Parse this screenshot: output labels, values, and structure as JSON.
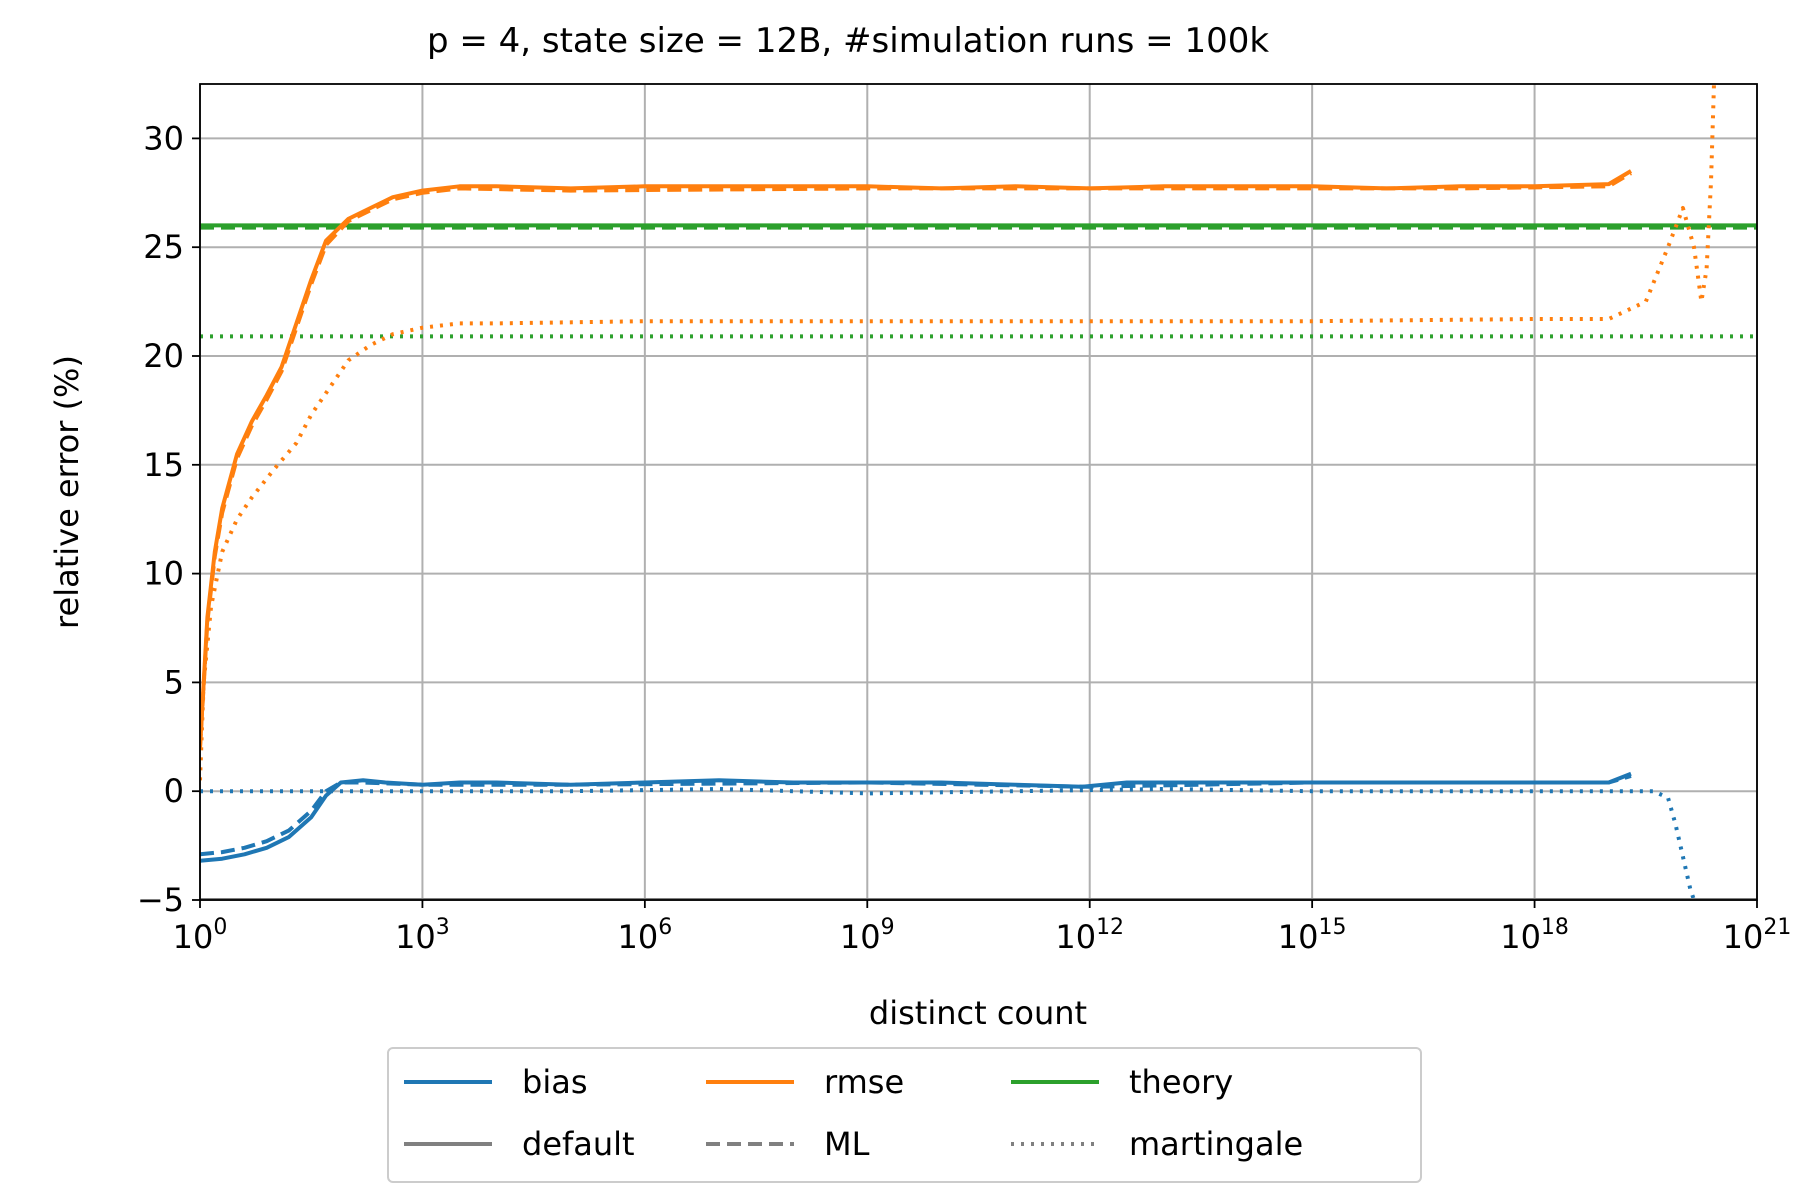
{
  "chart_data": {
    "type": "line",
    "title": "p = 4, state size = 12B, #simulation runs = 100k",
    "xlabel": "distinct count",
    "ylabel": "relative error (%)",
    "xscale": "log",
    "xlim_exp": [
      0,
      21
    ],
    "ylim": [
      -5,
      32.5
    ],
    "grid": true,
    "xticks": [
      {
        "base": "10",
        "exp": "0"
      },
      {
        "base": "10",
        "exp": "3"
      },
      {
        "base": "10",
        "exp": "6"
      },
      {
        "base": "10",
        "exp": "9"
      },
      {
        "base": "10",
        "exp": "12"
      },
      {
        "base": "10",
        "exp": "15"
      },
      {
        "base": "10",
        "exp": "18"
      },
      {
        "base": "10",
        "exp": "21"
      }
    ],
    "yticks": [
      "−5",
      "0",
      "5",
      "10",
      "15",
      "20",
      "25",
      "30"
    ],
    "colors": {
      "bias": "#1f77b4",
      "rmse": "#ff7f0e",
      "theory": "#2ca02c",
      "default": "#808080",
      "grid": "#b0b0b0"
    },
    "legend": {
      "placement": "below-center",
      "entries": [
        {
          "label": "bias",
          "color": "#1f77b4",
          "style": "solid"
        },
        {
          "label": "rmse",
          "color": "#ff7f0e",
          "style": "solid"
        },
        {
          "label": "theory",
          "color": "#2ca02c",
          "style": "solid"
        },
        {
          "label": "default",
          "color": "#808080",
          "style": "solid"
        },
        {
          "label": "ML",
          "color": "#808080",
          "style": "dashed"
        },
        {
          "label": "martingale",
          "color": "#808080",
          "style": "dotted"
        }
      ]
    },
    "series": [
      {
        "name": "theory default",
        "color": "#2ca02c",
        "style": "solid",
        "points": [
          [
            0,
            26.0
          ],
          [
            21,
            26.0
          ]
        ]
      },
      {
        "name": "theory ML",
        "color": "#2ca02c",
        "style": "dashed",
        "points": [
          [
            0,
            25.9
          ],
          [
            21,
            25.9
          ]
        ]
      },
      {
        "name": "theory martingale",
        "color": "#2ca02c",
        "style": "dotted",
        "points": [
          [
            0,
            20.9
          ],
          [
            21,
            20.9
          ]
        ]
      },
      {
        "name": "rmse default",
        "color": "#ff7f0e",
        "style": "solid",
        "points": [
          [
            0,
            2.0
          ],
          [
            0.1,
            8.0
          ],
          [
            0.2,
            11.0
          ],
          [
            0.3,
            13.0
          ],
          [
            0.5,
            15.5
          ],
          [
            0.7,
            17.0
          ],
          [
            0.9,
            18.2
          ],
          [
            1.1,
            19.5
          ],
          [
            1.3,
            21.5
          ],
          [
            1.5,
            23.5
          ],
          [
            1.7,
            25.3
          ],
          [
            2.0,
            26.3
          ],
          [
            2.3,
            26.8
          ],
          [
            2.6,
            27.3
          ],
          [
            3.0,
            27.6
          ],
          [
            3.5,
            27.8
          ],
          [
            4.0,
            27.8
          ],
          [
            5.0,
            27.7
          ],
          [
            6.0,
            27.8
          ],
          [
            7.0,
            27.8
          ],
          [
            8.0,
            27.8
          ],
          [
            9.0,
            27.8
          ],
          [
            10.0,
            27.7
          ],
          [
            11.0,
            27.8
          ],
          [
            12.0,
            27.7
          ],
          [
            13.0,
            27.8
          ],
          [
            14.0,
            27.8
          ],
          [
            15.0,
            27.8
          ],
          [
            16.0,
            27.7
          ],
          [
            17.0,
            27.8
          ],
          [
            18.0,
            27.8
          ],
          [
            19.0,
            27.9
          ],
          [
            19.3,
            28.5
          ]
        ]
      },
      {
        "name": "rmse ML",
        "color": "#ff7f0e",
        "style": "dashed",
        "points": [
          [
            0,
            2.0
          ],
          [
            0.1,
            7.8
          ],
          [
            0.2,
            10.8
          ],
          [
            0.3,
            12.8
          ],
          [
            0.5,
            15.3
          ],
          [
            0.7,
            16.8
          ],
          [
            0.9,
            18.0
          ],
          [
            1.1,
            19.3
          ],
          [
            1.3,
            21.3
          ],
          [
            1.5,
            23.3
          ],
          [
            1.7,
            25.1
          ],
          [
            2.0,
            26.2
          ],
          [
            2.3,
            26.7
          ],
          [
            2.6,
            27.2
          ],
          [
            3.0,
            27.5
          ],
          [
            3.5,
            27.7
          ],
          [
            5.0,
            27.6
          ],
          [
            9.0,
            27.7
          ],
          [
            13.0,
            27.7
          ],
          [
            17.0,
            27.7
          ],
          [
            19.0,
            27.8
          ],
          [
            19.3,
            28.4
          ]
        ]
      },
      {
        "name": "rmse martingale",
        "color": "#ff7f0e",
        "style": "dotted",
        "points": [
          [
            0,
            0.5
          ],
          [
            0.05,
            5.0
          ],
          [
            0.15,
            8.5
          ],
          [
            0.3,
            11.0
          ],
          [
            0.5,
            12.5
          ],
          [
            0.7,
            13.5
          ],
          [
            1.0,
            14.8
          ],
          [
            1.3,
            16.0
          ],
          [
            1.5,
            17.3
          ],
          [
            1.8,
            18.8
          ],
          [
            2.0,
            19.8
          ],
          [
            2.3,
            20.5
          ],
          [
            2.6,
            21.0
          ],
          [
            3.0,
            21.3
          ],
          [
            3.5,
            21.5
          ],
          [
            4.0,
            21.5
          ],
          [
            6.0,
            21.6
          ],
          [
            9.0,
            21.6
          ],
          [
            12.0,
            21.6
          ],
          [
            15.0,
            21.6
          ],
          [
            18.0,
            21.7
          ],
          [
            19.0,
            21.7
          ],
          [
            19.5,
            22.5
          ],
          [
            19.8,
            25.0
          ],
          [
            20.0,
            26.8
          ],
          [
            20.15,
            25.0
          ],
          [
            20.25,
            22.5
          ],
          [
            20.32,
            24.0
          ],
          [
            20.38,
            28.0
          ],
          [
            20.42,
            32.5
          ]
        ]
      },
      {
        "name": "bias default",
        "color": "#1f77b4",
        "style": "solid",
        "points": [
          [
            0,
            -3.2
          ],
          [
            0.3,
            -3.1
          ],
          [
            0.6,
            -2.9
          ],
          [
            0.9,
            -2.6
          ],
          [
            1.2,
            -2.1
          ],
          [
            1.5,
            -1.2
          ],
          [
            1.7,
            -0.2
          ],
          [
            1.9,
            0.4
          ],
          [
            2.2,
            0.5
          ],
          [
            2.5,
            0.4
          ],
          [
            3.0,
            0.3
          ],
          [
            3.5,
            0.4
          ],
          [
            4.0,
            0.4
          ],
          [
            5.0,
            0.3
          ],
          [
            6.0,
            0.4
          ],
          [
            7.0,
            0.5
          ],
          [
            8.0,
            0.4
          ],
          [
            9.0,
            0.4
          ],
          [
            10.0,
            0.4
          ],
          [
            11.0,
            0.3
          ],
          [
            11.9,
            0.2
          ],
          [
            12.5,
            0.4
          ],
          [
            13.0,
            0.4
          ],
          [
            14.0,
            0.4
          ],
          [
            15.0,
            0.4
          ],
          [
            16.0,
            0.4
          ],
          [
            17.0,
            0.4
          ],
          [
            18.0,
            0.4
          ],
          [
            19.0,
            0.4
          ],
          [
            19.3,
            0.8
          ]
        ]
      },
      {
        "name": "bias ML",
        "color": "#1f77b4",
        "style": "dashed",
        "points": [
          [
            0,
            -2.9
          ],
          [
            0.3,
            -2.8
          ],
          [
            0.6,
            -2.6
          ],
          [
            0.9,
            -2.3
          ],
          [
            1.2,
            -1.8
          ],
          [
            1.5,
            -0.9
          ],
          [
            1.7,
            0.0
          ],
          [
            1.9,
            0.4
          ],
          [
            2.2,
            0.4
          ],
          [
            3.0,
            0.3
          ],
          [
            5.0,
            0.3
          ],
          [
            9.0,
            0.4
          ],
          [
            12.0,
            0.2
          ],
          [
            15.0,
            0.4
          ],
          [
            19.0,
            0.4
          ],
          [
            19.3,
            0.7
          ]
        ]
      },
      {
        "name": "bias martingale",
        "color": "#1f77b4",
        "style": "dotted",
        "points": [
          [
            0,
            0.0
          ],
          [
            1.0,
            0.0
          ],
          [
            2.0,
            0.0
          ],
          [
            3.0,
            0.0
          ],
          [
            5.0,
            0.0
          ],
          [
            7.0,
            0.1
          ],
          [
            9.0,
            -0.1
          ],
          [
            11.0,
            0.0
          ],
          [
            13.0,
            0.1
          ],
          [
            15.0,
            0.0
          ],
          [
            17.0,
            0.0
          ],
          [
            19.0,
            0.0
          ],
          [
            19.6,
            0.0
          ],
          [
            19.8,
            -0.3
          ],
          [
            19.9,
            -1.5
          ],
          [
            20.0,
            -3.0
          ],
          [
            20.1,
            -4.5
          ],
          [
            20.15,
            -5.0
          ]
        ]
      },
      {
        "name": "default baseline",
        "color": "#808080",
        "style": "solid",
        "points": [
          [
            0,
            -5.0
          ],
          [
            21,
            -5.0
          ]
        ]
      }
    ]
  }
}
